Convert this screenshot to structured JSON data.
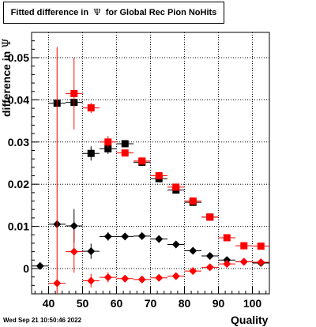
{
  "chart_data": {
    "type": "scatter",
    "title_prefix": "Fitted difference in",
    "title_symbol": "Ψ",
    "title_suffix": "for Global Rec Pion NoHits",
    "ylabel": "difference in",
    "ylabel_symbol": "Ψ",
    "xlabel": "Quality",
    "timestamp": "Wed Sep 21 10:50:46 2022",
    "xlim": [
      35,
      105
    ],
    "ylim": [
      -0.006,
      0.056
    ],
    "grid": true,
    "x_ticks": [
      40,
      50,
      60,
      70,
      80,
      90,
      100
    ],
    "y_ticks": [
      0,
      0.01,
      0.02,
      0.03,
      0.04,
      0.05
    ],
    "y_tick_labels": [
      "0",
      "0.01",
      "0.02",
      "0.03",
      "0.04",
      "0.05"
    ],
    "series": [
      {
        "marker": "square",
        "color": "#000000",
        "points": [
          {
            "x": 42.5,
            "y": 0.0392,
            "yerr": 0.0
          },
          {
            "x": 47.5,
            "y": 0.0394,
            "yerr": 0.0
          },
          {
            "x": 52.5,
            "y": 0.0273,
            "yerr": 0.0017
          },
          {
            "x": 57.5,
            "y": 0.0284,
            "yerr": 0.0012
          },
          {
            "x": 62.5,
            "y": 0.0296,
            "yerr": 0.0008
          },
          {
            "x": 67.5,
            "y": 0.0252,
            "yerr": 0.0005
          },
          {
            "x": 72.5,
            "y": 0.0213,
            "yerr": 0.0005
          },
          {
            "x": 77.5,
            "y": 0.0186,
            "yerr": 0.0004
          },
          {
            "x": 82.5,
            "y": 0.0157,
            "yerr": 0.0004
          },
          {
            "x": 87.5,
            "y": 0.0122,
            "yerr": 0.0004
          }
        ]
      },
      {
        "marker": "square",
        "color": "#ff0000",
        "points": [
          {
            "x": 47.5,
            "y": 0.0415,
            "yerr": 0.0085
          },
          {
            "x": 52.5,
            "y": 0.0381,
            "yerr": 0.0012
          },
          {
            "x": 57.5,
            "y": 0.03,
            "yerr": 0.0014
          },
          {
            "x": 62.5,
            "y": 0.0274,
            "yerr": 0.0006
          },
          {
            "x": 67.5,
            "y": 0.0255,
            "yerr": 0.0005
          },
          {
            "x": 72.5,
            "y": 0.022,
            "yerr": 0.0005
          },
          {
            "x": 77.5,
            "y": 0.0193,
            "yerr": 0.0005
          },
          {
            "x": 82.5,
            "y": 0.016,
            "yerr": 0.0005
          },
          {
            "x": 87.5,
            "y": 0.0122,
            "yerr": 0.0004
          },
          {
            "x": 92.5,
            "y": 0.0073,
            "yerr": 0.0004
          },
          {
            "x": 97.5,
            "y": 0.0054,
            "yerr": 0.0004
          },
          {
            "x": 102.5,
            "y": 0.0053,
            "yerr": 0.0003
          }
        ]
      },
      {
        "marker": "diamond",
        "color": "#000000",
        "points": [
          {
            "x": 37.5,
            "y": 0.0006,
            "yerr": 0.0
          },
          {
            "x": 42.5,
            "y": 0.0105,
            "yerr": 0.0
          },
          {
            "x": 47.5,
            "y": 0.0101,
            "yerr": 0.004
          },
          {
            "x": 52.5,
            "y": 0.0041,
            "yerr": 0.0018
          },
          {
            "x": 57.5,
            "y": 0.0076,
            "yerr": 0.001
          },
          {
            "x": 62.5,
            "y": 0.0076,
            "yerr": 0.0006
          },
          {
            "x": 67.5,
            "y": 0.0077,
            "yerr": 0.0004
          },
          {
            "x": 72.5,
            "y": 0.007,
            "yerr": 0.0004
          },
          {
            "x": 77.5,
            "y": 0.0057,
            "yerr": 0.0003
          },
          {
            "x": 82.5,
            "y": 0.0042,
            "yerr": 0.0003
          },
          {
            "x": 87.5,
            "y": 0.003,
            "yerr": 0.0003
          },
          {
            "x": 92.5,
            "y": 0.002,
            "yerr": 0.0003
          },
          {
            "x": 97.5,
            "y": 0.0016,
            "yerr": 0.0003
          },
          {
            "x": 102.5,
            "y": 0.0013,
            "yerr": 0.0003
          }
        ]
      },
      {
        "marker": "diamond",
        "color": "#ff0000",
        "points": [
          {
            "x": 42.5,
            "y": -0.0035,
            "yerr": 0.056
          },
          {
            "x": 47.5,
            "y": 0.004,
            "yerr": 0.005
          },
          {
            "x": 52.5,
            "y": -0.0029,
            "yerr": 0.0016
          },
          {
            "x": 57.5,
            "y": -0.0021,
            "yerr": 0.0012
          },
          {
            "x": 62.5,
            "y": -0.0024,
            "yerr": 0.0006
          },
          {
            "x": 67.5,
            "y": -0.0026,
            "yerr": 0.0005
          },
          {
            "x": 72.5,
            "y": -0.0022,
            "yerr": 0.0004
          },
          {
            "x": 77.5,
            "y": -0.0018,
            "yerr": 0.0003
          },
          {
            "x": 82.5,
            "y": -0.0006,
            "yerr": 0.0003
          },
          {
            "x": 87.5,
            "y": 0.0003,
            "yerr": 0.0003
          },
          {
            "x": 92.5,
            "y": 0.0011,
            "yerr": 0.0003
          },
          {
            "x": 97.5,
            "y": 0.0016,
            "yerr": 0.0003
          },
          {
            "x": 102.5,
            "y": 0.0015,
            "yerr": 0.0003
          }
        ]
      }
    ]
  }
}
